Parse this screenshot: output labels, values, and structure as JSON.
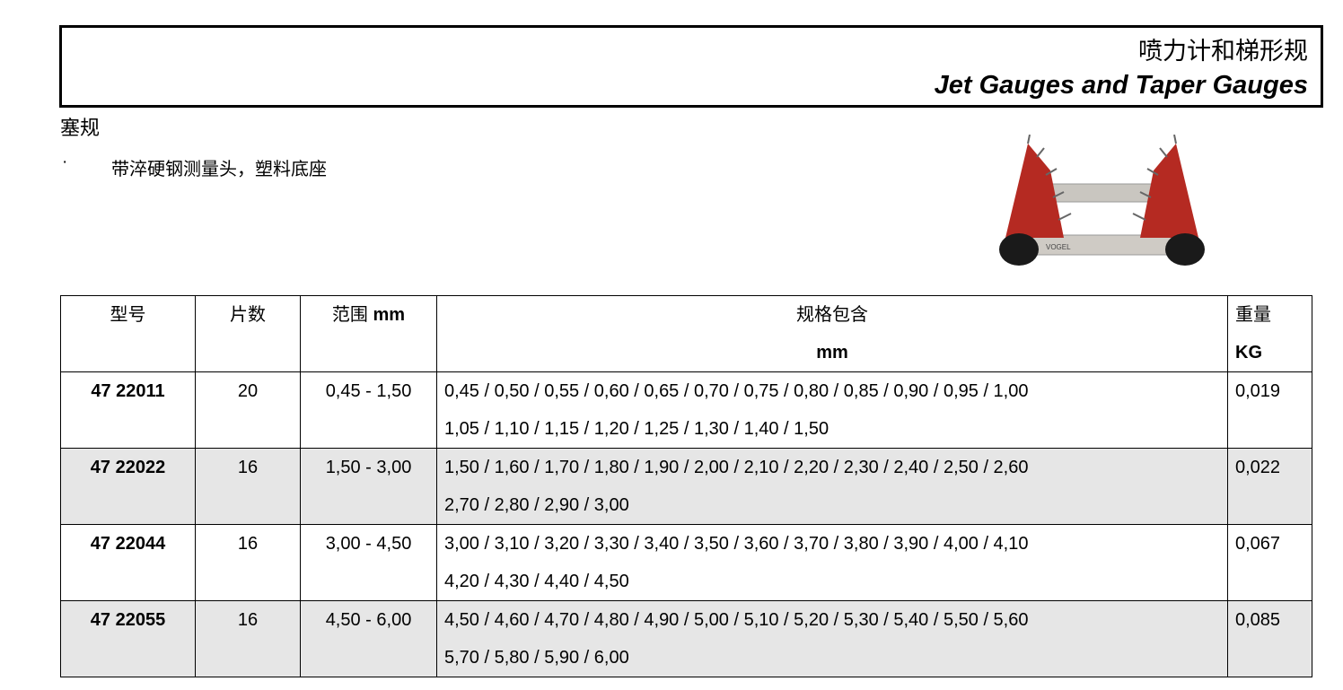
{
  "header": {
    "title_cn": "喷力计和梯形规",
    "title_en": "Jet Gauges and Taper Gauges"
  },
  "section": {
    "title": "塞规",
    "bullet_marker": "·",
    "bullet": "带淬硬钢测量头，塑料底座"
  },
  "image": {
    "description_icon": "gauge-set-photo",
    "brand_text": "VOGEL"
  },
  "table": {
    "headers": {
      "model": "型号",
      "pieces": "片数",
      "range_cn": "范围",
      "range_unit": "mm",
      "contents_cn": "规格包含",
      "contents_unit": "mm",
      "weight_cn": "重量",
      "weight_unit": "KG"
    },
    "rows": [
      {
        "model": "47 22011",
        "pieces": "20",
        "range": "0,45 - 1,50",
        "line1": "0,45 / 0,50 / 0,55 / 0,60 / 0,65 / 0,70 / 0,75 / 0,80 / 0,85 / 0,90 / 0,95 / 1,00",
        "line2": "1,05 / 1,10 / 1,15 / 1,20 / 1,25 / 1,30 / 1,40 / 1,50",
        "weight": "0,019"
      },
      {
        "model": "47 22022",
        "pieces": "16",
        "range": "1,50 - 3,00",
        "line1": "1,50 / 1,60 / 1,70 / 1,80 / 1,90 / 2,00 / 2,10 / 2,20 / 2,30 / 2,40 / 2,50 / 2,60",
        "line2": "2,70 / 2,80 / 2,90 / 3,00",
        "weight": "0,022"
      },
      {
        "model": "47 22044",
        "pieces": "16",
        "range": "3,00 - 4,50",
        "line1": "3,00 / 3,10 / 3,20 / 3,30 / 3,40 / 3,50 / 3,60 / 3,70 / 3,80 / 3,90 / 4,00 / 4,10",
        "line2": "4,20 / 4,30 / 4,40 / 4,50",
        "weight": "0,067"
      },
      {
        "model": "47 22055",
        "pieces": "16",
        "range": "4,50 - 6,00",
        "line1": "4,50 / 4,60 / 4,70 / 4,80 / 4,90 / 5,00 / 5,10 / 5,20 / 5,30 / 5,40 / 5,50 / 5,60",
        "line2": "5,70 / 5,80 / 5,90 / 6,00",
        "weight": "0,085"
      }
    ]
  }
}
